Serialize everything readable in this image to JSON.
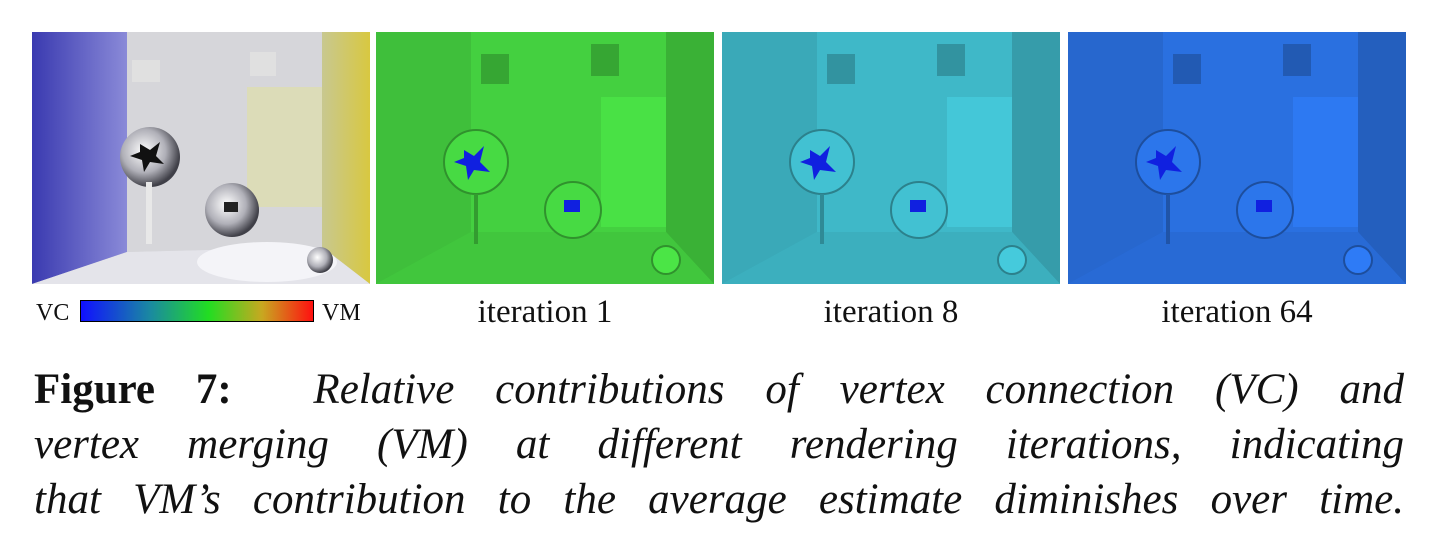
{
  "panels": [
    {
      "kind": "rendering"
    },
    {
      "kind": "heatmap",
      "label": "iteration 1",
      "tint": "#44d040"
    },
    {
      "kind": "heatmap",
      "label": "iteration 8",
      "tint": "#3fb8c8"
    },
    {
      "kind": "heatmap",
      "label": "iteration 64",
      "tint": "#2a70e0"
    }
  ],
  "colorbar": {
    "left_label": "VC",
    "right_label": "VM",
    "colors": [
      "#1010ff",
      "#1a8aa0",
      "#22dd22",
      "#c8a820",
      "#ff1010"
    ]
  },
  "caption": {
    "label": "Figure 7:",
    "line1": "Relative contributions of vertex connection (VC) and",
    "line2": "vertex merging (VM) at different rendering iterations, indicating",
    "line3": "that VM’s contribution to the average estimate diminishes over time."
  }
}
